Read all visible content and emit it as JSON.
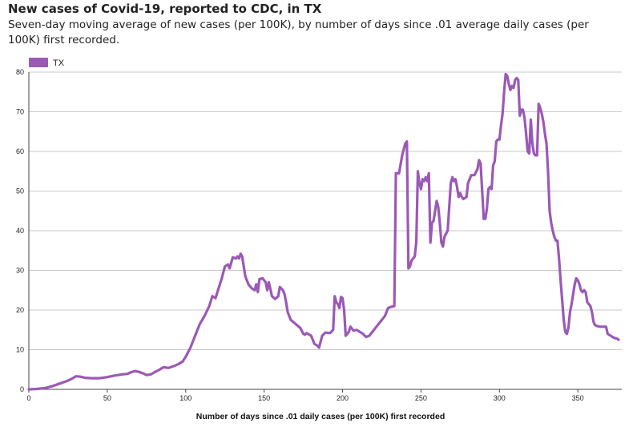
{
  "header": {
    "title": "New cases of Covid-19, reported to CDC, in TX",
    "subtitle": "Seven-day moving average of new cases (per 100K), by number of days since .01 average daily cases (per 100K) first recorded."
  },
  "chart_data": {
    "type": "line",
    "title": "New cases of Covid-19, reported to CDC, in TX",
    "subtitle": "Seven-day moving average of new cases (per 100K), by number of days since .01 average daily cases (per 100K) first recorded.",
    "xlabel": "Number of days since .01 daily cases (per 100K) first recorded",
    "ylabel": "",
    "xlim": [
      0,
      378
    ],
    "ylim": [
      0,
      80
    ],
    "x_ticks": [
      0,
      50,
      100,
      150,
      200,
      250,
      300,
      350
    ],
    "y_ticks": [
      0,
      10,
      20,
      30,
      40,
      50,
      60,
      70,
      80
    ],
    "grid": "horizontal",
    "legend_position": "top-left",
    "series": [
      {
        "name": "TX",
        "color": "#9b59b6",
        "points": [
          [
            0,
            0
          ],
          [
            5,
            0.1
          ],
          [
            10,
            0.3
          ],
          [
            15,
            0.8
          ],
          [
            20,
            1.5
          ],
          [
            25,
            2.2
          ],
          [
            28,
            2.8
          ],
          [
            30,
            3.3
          ],
          [
            33,
            3.2
          ],
          [
            36,
            2.9
          ],
          [
            40,
            2.8
          ],
          [
            45,
            2.8
          ],
          [
            50,
            3.1
          ],
          [
            55,
            3.5
          ],
          [
            60,
            3.8
          ],
          [
            63,
            3.9
          ],
          [
            65,
            4.3
          ],
          [
            68,
            4.6
          ],
          [
            71,
            4.3
          ],
          [
            73,
            4.0
          ],
          [
            75,
            3.6
          ],
          [
            78,
            3.8
          ],
          [
            80,
            4.3
          ],
          [
            83,
            4.9
          ],
          [
            86,
            5.6
          ],
          [
            89,
            5.4
          ],
          [
            92,
            5.8
          ],
          [
            95,
            6.3
          ],
          [
            98,
            7.0
          ],
          [
            100,
            8.2
          ],
          [
            103,
            10.5
          ],
          [
            106,
            13.5
          ],
          [
            109,
            16.5
          ],
          [
            112,
            18.5
          ],
          [
            115,
            21.0
          ],
          [
            117,
            23.5
          ],
          [
            119,
            23.0
          ],
          [
            121,
            25.5
          ],
          [
            123,
            28.0
          ],
          [
            125,
            31.0
          ],
          [
            127,
            31.5
          ],
          [
            128,
            30.5
          ],
          [
            130,
            33.3
          ],
          [
            132,
            33.0
          ],
          [
            133,
            33.5
          ],
          [
            134,
            33.0
          ],
          [
            135,
            34.2
          ],
          [
            136,
            33.5
          ],
          [
            137,
            31.0
          ],
          [
            138,
            28.5
          ],
          [
            140,
            26.5
          ],
          [
            142,
            25.5
          ],
          [
            144,
            25.0
          ],
          [
            145,
            26.5
          ],
          [
            146,
            24.5
          ],
          [
            147,
            27.8
          ],
          [
            149,
            28.0
          ],
          [
            151,
            27.0
          ],
          [
            152,
            25.0
          ],
          [
            153,
            27.0
          ],
          [
            155,
            23.5
          ],
          [
            157,
            22.8
          ],
          [
            159,
            23.5
          ],
          [
            160,
            25.8
          ],
          [
            162,
            25.0
          ],
          [
            163,
            24.0
          ],
          [
            164,
            22.0
          ],
          [
            165,
            19.5
          ],
          [
            167,
            17.5
          ],
          [
            170,
            16.5
          ],
          [
            173,
            15.5
          ],
          [
            175,
            14.0
          ],
          [
            176,
            13.8
          ],
          [
            177,
            14.2
          ],
          [
            180,
            13.5
          ],
          [
            182,
            11.5
          ],
          [
            184,
            11.0
          ],
          [
            185,
            10.5
          ],
          [
            187,
            13.5
          ],
          [
            189,
            14.3
          ],
          [
            192,
            14.2
          ],
          [
            194,
            15.0
          ],
          [
            195,
            23.5
          ],
          [
            196,
            22.0
          ],
          [
            197,
            21.5
          ],
          [
            198,
            20.5
          ],
          [
            199,
            23.3
          ],
          [
            200,
            23.0
          ],
          [
            201,
            20.0
          ],
          [
            202,
            13.5
          ],
          [
            204,
            14.5
          ],
          [
            205,
            15.8
          ],
          [
            207,
            14.8
          ],
          [
            209,
            15.0
          ],
          [
            211,
            14.5
          ],
          [
            213,
            14.0
          ],
          [
            215,
            13.2
          ],
          [
            217,
            13.5
          ],
          [
            219,
            14.5
          ],
          [
            221,
            15.5
          ],
          [
            223,
            16.5
          ],
          [
            225,
            17.5
          ],
          [
            227,
            18.5
          ],
          [
            229,
            20.5
          ],
          [
            231,
            20.8
          ],
          [
            233,
            21.0
          ],
          [
            234,
            54.5
          ],
          [
            236,
            54.5
          ],
          [
            238,
            59.0
          ],
          [
            240,
            62.0
          ],
          [
            241,
            62.5
          ],
          [
            242,
            30.5
          ],
          [
            243,
            31.0
          ],
          [
            244,
            32.5
          ],
          [
            246,
            33.5
          ],
          [
            247,
            37.0
          ],
          [
            248,
            55.0
          ],
          [
            249,
            52.0
          ],
          [
            250,
            50.5
          ],
          [
            251,
            53.0
          ],
          [
            252,
            52.5
          ],
          [
            253,
            53.5
          ],
          [
            254,
            52.5
          ],
          [
            255,
            54.5
          ],
          [
            256,
            37.0
          ],
          [
            257,
            42.0
          ],
          [
            258,
            42.5
          ],
          [
            259,
            45.0
          ],
          [
            260,
            47.5
          ],
          [
            261,
            46.0
          ],
          [
            262,
            42.0
          ],
          [
            263,
            37.0
          ],
          [
            264,
            36.0
          ],
          [
            265,
            38.5
          ],
          [
            267,
            40.0
          ],
          [
            268,
            46.0
          ],
          [
            269,
            52.0
          ],
          [
            270,
            53.5
          ],
          [
            271,
            52.5
          ],
          [
            272,
            53.0
          ],
          [
            273,
            51.0
          ],
          [
            274,
            48.5
          ],
          [
            275,
            49.5
          ],
          [
            276,
            48.5
          ],
          [
            277,
            48.0
          ],
          [
            279,
            48.5
          ],
          [
            280,
            52.0
          ],
          [
            282,
            54.0
          ],
          [
            284,
            54.0
          ],
          [
            286,
            55.5
          ],
          [
            287,
            57.8
          ],
          [
            288,
            57.0
          ],
          [
            289,
            50.0
          ],
          [
            290,
            43.0
          ],
          [
            291,
            43.0
          ],
          [
            292,
            45.5
          ],
          [
            293,
            50.5
          ],
          [
            294,
            51.0
          ],
          [
            295,
            50.5
          ],
          [
            296,
            56.5
          ],
          [
            297,
            57.5
          ],
          [
            298,
            62.5
          ],
          [
            299,
            63.0
          ],
          [
            300,
            63.0
          ],
          [
            301,
            66.5
          ],
          [
            302,
            69.5
          ],
          [
            303,
            75.0
          ],
          [
            304,
            79.5
          ],
          [
            305,
            79.0
          ],
          [
            306,
            77.0
          ],
          [
            307,
            75.5
          ],
          [
            308,
            76.5
          ],
          [
            309,
            76.0
          ],
          [
            310,
            78.0
          ],
          [
            311,
            78.5
          ],
          [
            312,
            78.0
          ],
          [
            313,
            69.0
          ],
          [
            314,
            70.5
          ],
          [
            315,
            70.5
          ],
          [
            316,
            68.5
          ],
          [
            317,
            64.5
          ],
          [
            318,
            60.0
          ],
          [
            319,
            59.5
          ],
          [
            320,
            68.0
          ],
          [
            321,
            62.0
          ],
          [
            322,
            59.5
          ],
          [
            323,
            59.0
          ],
          [
            324,
            59.0
          ],
          [
            325,
            72.0
          ],
          [
            326,
            71.0
          ],
          [
            327,
            69.5
          ],
          [
            328,
            67.5
          ],
          [
            329,
            64.5
          ],
          [
            330,
            62.0
          ],
          [
            331,
            55.0
          ],
          [
            332,
            45.0
          ],
          [
            333,
            42.0
          ],
          [
            334,
            40.0
          ],
          [
            335,
            38.5
          ],
          [
            336,
            37.5
          ],
          [
            337,
            37.5
          ],
          [
            338,
            33.0
          ],
          [
            339,
            27.5
          ],
          [
            340,
            22.5
          ],
          [
            341,
            17.5
          ],
          [
            342,
            14.5
          ],
          [
            343,
            14.0
          ],
          [
            344,
            15.5
          ],
          [
            345,
            19.5
          ],
          [
            346,
            21.5
          ],
          [
            347,
            24.0
          ],
          [
            348,
            26.5
          ],
          [
            349,
            28.0
          ],
          [
            350,
            27.5
          ],
          [
            351,
            26.5
          ],
          [
            352,
            25.0
          ],
          [
            353,
            24.5
          ],
          [
            354,
            25.0
          ],
          [
            355,
            24.5
          ],
          [
            356,
            22.0
          ],
          [
            357,
            21.5
          ],
          [
            358,
            21.0
          ],
          [
            359,
            19.5
          ],
          [
            360,
            17.0
          ],
          [
            361,
            16.2
          ],
          [
            362,
            16.0
          ],
          [
            364,
            15.8
          ],
          [
            368,
            15.8
          ],
          [
            369,
            14.0
          ],
          [
            371,
            13.5
          ],
          [
            373,
            13.0
          ],
          [
            375,
            12.8
          ],
          [
            376,
            12.5
          ]
        ]
      }
    ]
  }
}
